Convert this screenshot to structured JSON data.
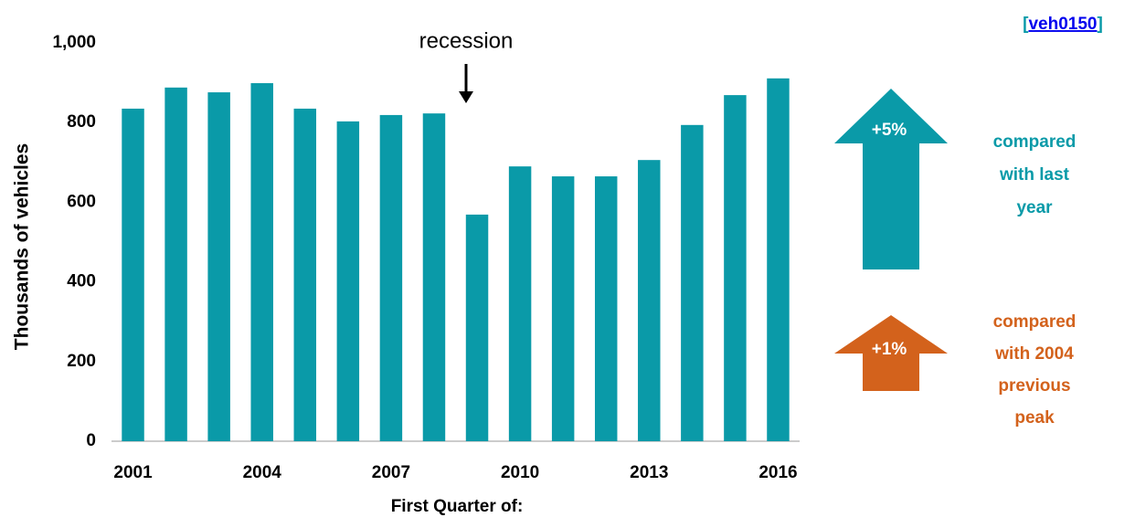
{
  "chart_data": {
    "type": "bar",
    "source": {
      "prefix": "[",
      "link": "veh0150",
      "suffix": "]"
    },
    "categories": [
      "2001",
      null,
      null,
      "2004",
      null,
      null,
      "2007",
      null,
      null,
      "2010",
      null,
      null,
      "2013",
      null,
      null,
      "2016"
    ],
    "values": [
      835,
      888,
      876,
      899,
      835,
      803,
      819,
      823,
      569,
      690,
      665,
      665,
      706,
      794,
      869,
      911
    ],
    "color": "#0a9aa8",
    "ylim": [
      0,
      1000
    ],
    "yticks": [
      0,
      200,
      400,
      600,
      800,
      {
        "value": 1000,
        "label": "1,000"
      }
    ],
    "grid": false,
    "x_label": "First Quarter of:",
    "y_label": "Thousands of vehicles",
    "annotations": {
      "recession": "recession",
      "yearly": {
        "value": "+5%",
        "text": [
          "compared",
          "with last",
          "year"
        ],
        "color": "#0a9aa8"
      },
      "peak": {
        "value": "+1%",
        "text": [
          "compared",
          "with 2004",
          "previous",
          "peak"
        ],
        "color": "#d3621c"
      }
    }
  }
}
